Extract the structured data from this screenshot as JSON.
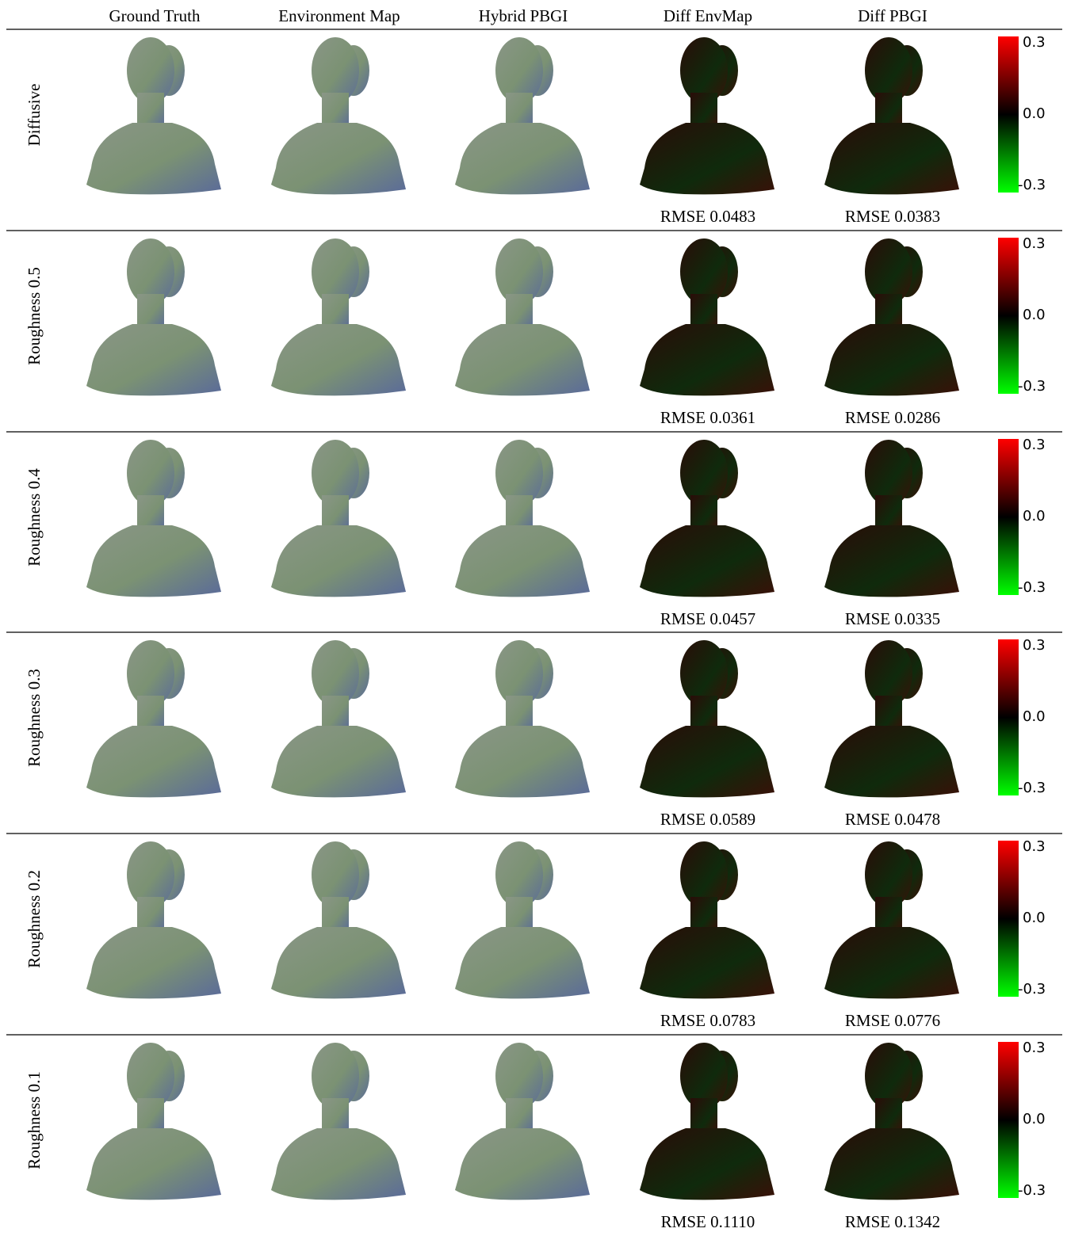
{
  "header": {
    "columns": [
      "Ground Truth",
      "Environment Map",
      "Hybrid PBGI",
      "Diff EnvMap",
      "Diff PBGI"
    ]
  },
  "rows": [
    {
      "label": "Diffusive",
      "rmse": [
        "RMSE 0.0483",
        "RMSE 0.0383"
      ]
    },
    {
      "label": "Roughness 0.5",
      "rmse": [
        "RMSE 0.0361",
        "RMSE 0.0286"
      ]
    },
    {
      "label": "Roughness 0.4",
      "rmse": [
        "RMSE 0.0457",
        "RMSE 0.0335"
      ]
    },
    {
      "label": "Roughness 0.3",
      "rmse": [
        "RMSE 0.0589",
        "RMSE 0.0478"
      ]
    },
    {
      "label": "Roughness 0.2",
      "rmse": [
        "RMSE 0.0783",
        "RMSE 0.0776"
      ]
    },
    {
      "label": "Roughness 0.1",
      "rmse": [
        "RMSE 0.1110",
        "RMSE 0.1342"
      ]
    }
  ],
  "colorbar": {
    "ticks": [
      "0.3",
      "0.0",
      "-0.3"
    ]
  }
}
